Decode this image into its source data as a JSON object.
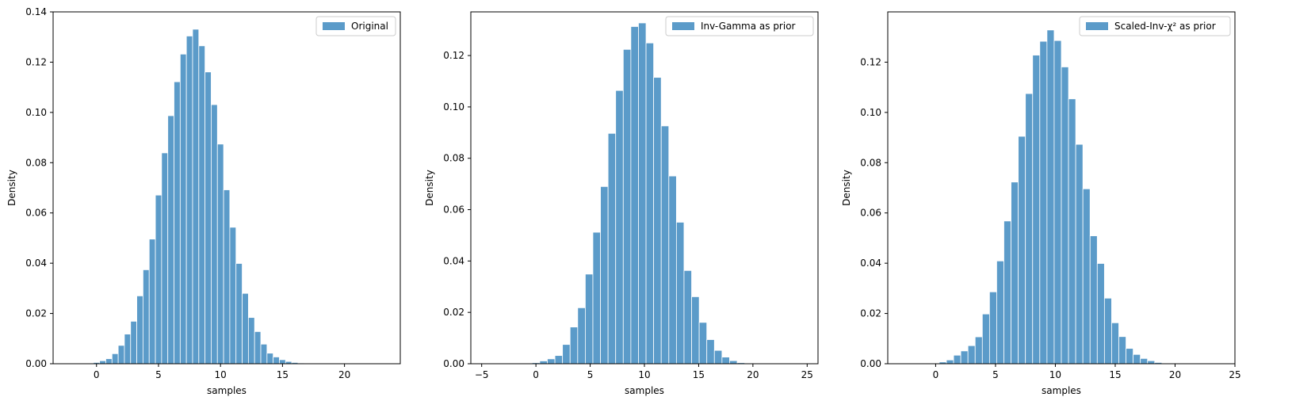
{
  "colors": {
    "bar": "#5b9bc9",
    "axis": "#000000",
    "legend_border": "#cccccc"
  },
  "chart_data": [
    {
      "type": "bar",
      "legend_location": "top-right",
      "grid": false,
      "xlabel": "samples",
      "ylabel": "Density",
      "xlim": [
        -3.5,
        24.5
      ],
      "ylim": [
        0,
        0.14
      ],
      "xticks": [
        "0",
        "5",
        "10",
        "15",
        "20"
      ],
      "yticks": [
        "0.00",
        "0.02",
        "0.04",
        "0.06",
        "0.08",
        "0.10",
        "0.12",
        "0.14"
      ],
      "series": [
        {
          "name": "Original",
          "x": [
            -0.5,
            0.0,
            0.5,
            1.0,
            1.5,
            2.0,
            2.5,
            3.0,
            3.5,
            4.0,
            4.5,
            5.0,
            5.5,
            6.0,
            6.5,
            7.0,
            7.5,
            8.0,
            8.5,
            9.0,
            9.5,
            10.0,
            10.5,
            11.0,
            11.5,
            12.0,
            12.5,
            13.0,
            13.5,
            14.0,
            14.5,
            15.0,
            15.5,
            16.0,
            16.5,
            17.0,
            17.5,
            18.0,
            18.5,
            19.0,
            19.5,
            20.0
          ],
          "values": [
            0.0002,
            0.0005,
            0.0012,
            0.002,
            0.004,
            0.0073,
            0.0118,
            0.0169,
            0.027,
            0.0374,
            0.0496,
            0.0671,
            0.0839,
            0.0987,
            0.1122,
            0.1232,
            0.1304,
            0.1331,
            0.1265,
            0.1161,
            0.1031,
            0.0874,
            0.0692,
            0.0543,
            0.0399,
            0.028,
            0.0184,
            0.0128,
            0.0078,
            0.0042,
            0.0027,
            0.0016,
            0.0009,
            0.0005,
            0.0003,
            0.0002,
            0.0001,
            0.0,
            0.0,
            0.0,
            0.0,
            0.0
          ],
          "bin_width": 0.5
        }
      ]
    },
    {
      "type": "bar",
      "legend_location": "top-right",
      "grid": false,
      "xlabel": "samples",
      "ylabel": "Density",
      "xlim": [
        -6,
        26
      ],
      "ylim": [
        0,
        0.137
      ],
      "xticks": [
        "−5",
        "0",
        "5",
        "10",
        "15",
        "20",
        "25"
      ],
      "yticks": [
        "0.00",
        "0.02",
        "0.04",
        "0.06",
        "0.08",
        "0.10",
        "0.12"
      ],
      "series": [
        {
          "name": "Inv-Gamma as prior",
          "x": [
            0.0,
            0.7,
            1.4,
            2.1,
            2.8,
            3.5,
            4.2,
            4.9,
            5.6,
            6.3,
            7.0,
            7.7,
            8.4,
            9.1,
            9.8,
            10.5,
            11.2,
            11.9,
            12.6,
            13.3,
            14.0,
            14.7,
            15.4,
            16.1,
            16.8,
            17.5,
            18.2,
            18.9,
            19.6
          ],
          "values": [
            0.0004,
            0.0011,
            0.0019,
            0.0032,
            0.0075,
            0.0143,
            0.0218,
            0.0349,
            0.0512,
            0.069,
            0.0897,
            0.1064,
            0.1224,
            0.1313,
            0.1327,
            0.1249,
            0.1115,
            0.0926,
            0.0731,
            0.0551,
            0.0363,
            0.0261,
            0.0161,
            0.0094,
            0.0052,
            0.0026,
            0.0012,
            0.0004,
            0.0001
          ],
          "bin_width": 0.7
        }
      ]
    },
    {
      "type": "bar",
      "legend_location": "top-right",
      "grid": false,
      "xlabel": "samples",
      "ylabel": "Density",
      "xlim": [
        -4,
        25
      ],
      "ylim": [
        0,
        0.14
      ],
      "xticks": [
        "0",
        "5",
        "10",
        "15",
        "20",
        "25"
      ],
      "yticks": [
        "0.00",
        "0.02",
        "0.04",
        "0.06",
        "0.08",
        "0.10",
        "0.12"
      ],
      "series": [
        {
          "name": "Scaled-Inv-χ² as prior",
          "x": [
            0.0,
            0.6,
            1.2,
            1.8,
            2.4,
            3.0,
            3.6,
            4.2,
            4.8,
            5.4,
            6.0,
            6.6,
            7.2,
            7.8,
            8.4,
            9.0,
            9.6,
            10.2,
            10.8,
            11.4,
            12.0,
            12.6,
            13.2,
            13.8,
            14.4,
            15.0,
            15.6,
            16.2,
            16.8,
            17.4,
            18.0,
            18.6,
            19.2,
            19.8
          ],
          "values": [
            0.0002,
            0.0007,
            0.0015,
            0.0034,
            0.0051,
            0.0072,
            0.0107,
            0.0198,
            0.0286,
            0.0409,
            0.0568,
            0.0723,
            0.0905,
            0.1075,
            0.1228,
            0.1283,
            0.1328,
            0.1286,
            0.1181,
            0.1054,
            0.0873,
            0.0696,
            0.0509,
            0.0399,
            0.0261,
            0.0163,
            0.0108,
            0.0061,
            0.0037,
            0.0021,
            0.0012,
            0.0005,
            0.0002,
            0.0001
          ],
          "bin_width": 0.6
        }
      ]
    }
  ]
}
